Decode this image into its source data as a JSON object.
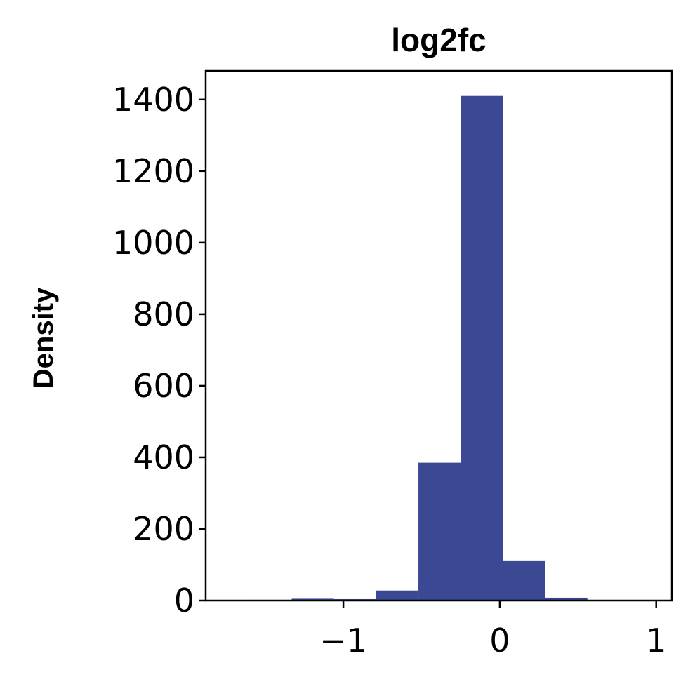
{
  "chart_data": {
    "type": "bar",
    "title": "log2fc",
    "xlabel": "",
    "ylabel": "Density",
    "xlim": [
      -1.88,
      1.1
    ],
    "ylim": [
      0,
      1480
    ],
    "x_ticks": [
      -1,
      0,
      1
    ],
    "x_tick_labels": [
      "−1",
      "0",
      "1"
    ],
    "y_ticks": [
      0,
      200,
      400,
      600,
      800,
      1000,
      1200,
      1400
    ],
    "y_tick_labels": [
      "0",
      "200",
      "400",
      "600",
      "800",
      "1000",
      "1200",
      "1400"
    ],
    "bar_color": "#3b4994",
    "grid": false,
    "bins": [
      {
        "x0": -1.87,
        "x1": -1.6,
        "value": 0
      },
      {
        "x0": -1.6,
        "x1": -1.33,
        "value": 2
      },
      {
        "x0": -1.33,
        "x1": -1.06,
        "value": 5
      },
      {
        "x0": -1.06,
        "x1": -0.79,
        "value": 4
      },
      {
        "x0": -0.79,
        "x1": -0.52,
        "value": 28
      },
      {
        "x0": -0.52,
        "x1": -0.25,
        "value": 385
      },
      {
        "x0": -0.25,
        "x1": 0.02,
        "value": 1410
      },
      {
        "x0": 0.02,
        "x1": 0.29,
        "value": 112
      },
      {
        "x0": 0.29,
        "x1": 0.56,
        "value": 8
      },
      {
        "x0": 0.56,
        "x1": 0.83,
        "value": 1
      }
    ]
  }
}
